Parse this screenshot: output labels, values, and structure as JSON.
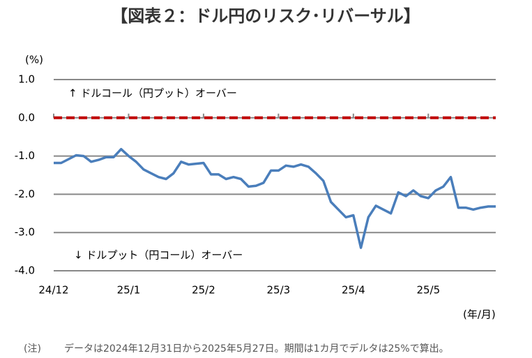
{
  "chart_data": {
    "type": "line",
    "title": "【図表２：ドル円のリスク･リバーサル】",
    "y_unit": "(%)",
    "x_unit": "(年/月)",
    "annotations": [
      "↑ ドルコール（円プット）オーバー",
      "↓ ドルプット（円コール）オーバー"
    ],
    "note_label": "(注)",
    "note": "データは2024年12月31日から2025年5月27日。期間は1カ月でデルタは25%で算出。",
    "categories": [
      "24/12",
      null,
      null,
      null,
      null,
      null,
      null,
      null,
      null,
      null,
      "25/1",
      null,
      null,
      null,
      null,
      null,
      null,
      null,
      null,
      null,
      "25/2",
      null,
      null,
      null,
      null,
      null,
      null,
      null,
      null,
      null,
      "25/3",
      null,
      null,
      null,
      null,
      null,
      null,
      null,
      null,
      null,
      "25/4",
      null,
      null,
      null,
      null,
      null,
      null,
      null,
      null,
      null,
      "25/5",
      null,
      null,
      null,
      null,
      null,
      null,
      null,
      null,
      null
    ],
    "series": [
      {
        "name": "ドル円リスク・リバーサル",
        "color": "#4a7ebb",
        "values": [
          -1.18,
          -1.18,
          -1.08,
          -0.98,
          -1.0,
          -1.15,
          -1.1,
          -1.03,
          -1.03,
          -0.82,
          -1.0,
          -1.15,
          -1.35,
          -1.45,
          -1.55,
          -1.6,
          -1.45,
          -1.15,
          -1.22,
          -1.2,
          -1.18,
          -1.48,
          -1.48,
          -1.6,
          -1.55,
          -1.6,
          -1.8,
          -1.78,
          -1.7,
          -1.38,
          -1.38,
          -1.25,
          -1.28,
          -1.22,
          -1.28,
          -1.45,
          -1.65,
          -2.2,
          -2.4,
          -2.6,
          -2.55,
          -3.4,
          -2.6,
          -2.3,
          -2.4,
          -2.5,
          -1.95,
          -2.05,
          -1.9,
          -2.05,
          -2.1,
          -1.9,
          -1.8,
          -1.55,
          -2.35,
          -2.35,
          -2.4,
          -2.35,
          -2.32,
          -2.32
        ]
      }
    ],
    "ylim": [
      -4,
      1
    ],
    "yticks": [
      {
        "value": 1,
        "label": "1.0"
      },
      {
        "value": 0,
        "label": "0.0"
      },
      {
        "value": -1,
        "label": "-1.0"
      },
      {
        "value": -2,
        "label": "-2.0"
      },
      {
        "value": -3,
        "label": "-3.0"
      },
      {
        "value": -4,
        "label": "-4.0"
      }
    ],
    "grid": true,
    "reference_line": {
      "value": 0,
      "color": "#c00000"
    }
  }
}
